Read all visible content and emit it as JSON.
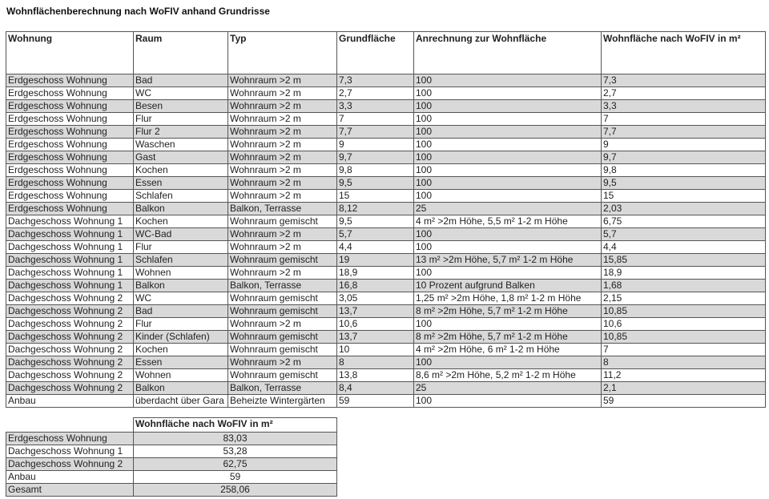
{
  "title": "Wohnflächenberechnung nach WoFIV anhand Grundrisse",
  "table": {
    "header": [
      "Wohnung",
      "Raum",
      "Typ",
      "Grundfläche",
      "Anrechnung zur Wohnfläche",
      "Wohnfläche nach WoFIV in m²"
    ],
    "rows": [
      [
        "Erdgeschoss Wohnung",
        "Bad",
        "Wohnraum >2 m",
        "7,3",
        "100",
        "7,3"
      ],
      [
        "Erdgeschoss Wohnung",
        "WC",
        "Wohnraum >2 m",
        "2,7",
        "100",
        "2,7"
      ],
      [
        "Erdgeschoss Wohnung",
        "Besen",
        "Wohnraum >2 m",
        "3,3",
        "100",
        "3,3"
      ],
      [
        "Erdgeschoss Wohnung",
        "Flur",
        "Wohnraum >2 m",
        "7",
        "100",
        "7"
      ],
      [
        "Erdgeschoss Wohnung",
        "Flur 2",
        "Wohnraum >2 m",
        "7,7",
        "100",
        "7,7"
      ],
      [
        "Erdgeschoss Wohnung",
        "Waschen",
        "Wohnraum >2 m",
        "9",
        "100",
        "9"
      ],
      [
        "Erdgeschoss Wohnung",
        "Gast",
        "Wohnraum >2 m",
        "9,7",
        "100",
        "9,7"
      ],
      [
        "Erdgeschoss Wohnung",
        "Kochen",
        "Wohnraum >2 m",
        "9,8",
        "100",
        "9,8"
      ],
      [
        "Erdgeschoss Wohnung",
        "Essen",
        "Wohnraum >2 m",
        "9,5",
        "100",
        "9,5"
      ],
      [
        "Erdgeschoss Wohnung",
        "Schlafen",
        "Wohnraum >2 m",
        "15",
        "100",
        "15"
      ],
      [
        "Erdgeschoss Wohnung",
        "Balkon",
        "Balkon, Terrasse",
        "8,12",
        "25",
        "2,03"
      ],
      [
        "Dachgeschoss Wohnung 1",
        "Kochen",
        "Wohnraum gemischt",
        "9,5",
        "4 m² >2m Höhe, 5,5 m² 1-2 m Höhe",
        "6,75"
      ],
      [
        "Dachgeschoss Wohnung 1",
        "WC-Bad",
        "Wohnraum >2 m",
        "5,7",
        "100",
        "5,7"
      ],
      [
        "Dachgeschoss Wohnung 1",
        "Flur",
        "Wohnraum >2 m",
        "4,4",
        "100",
        "4,4"
      ],
      [
        "Dachgeschoss Wohnung 1",
        "Schlafen",
        "Wohnraum gemischt",
        "19",
        "13 m² >2m Höhe, 5,7 m² 1-2 m Höhe",
        "15,85"
      ],
      [
        "Dachgeschoss Wohnung 1",
        "Wohnen",
        "Wohnraum >2 m",
        "18,9",
        "100",
        "18,9"
      ],
      [
        "Dachgeschoss Wohnung 1",
        "Balkon",
        "Balkon, Terrasse",
        "16,8",
        "10 Prozent aufgrund Balken",
        "1,68"
      ],
      [
        "Dachgeschoss Wohnung 2",
        "WC",
        "Wohnraum gemischt",
        "3,05",
        "1,25 m² >2m Höhe, 1,8 m² 1-2 m Höhe",
        "2,15"
      ],
      [
        "Dachgeschoss Wohnung 2",
        "Bad",
        "Wohnraum gemischt",
        "13,7",
        "8 m² >2m Höhe, 5,7 m² 1-2 m Höhe",
        "10,85"
      ],
      [
        "Dachgeschoss Wohnung 2",
        "Flur",
        "Wohnraum >2 m",
        "10,6",
        "100",
        "10,6"
      ],
      [
        "Dachgeschoss Wohnung 2",
        "Kinder (Schlafen)",
        "Wohnraum gemischt",
        "13,7",
        "8 m² >2m Höhe, 5,7 m² 1-2 m Höhe",
        "10,85"
      ],
      [
        "Dachgeschoss Wohnung 2",
        "Kochen",
        "Wohnraum gemischt",
        "10",
        "4 m² >2m Höhe, 6 m² 1-2 m Höhe",
        "7"
      ],
      [
        "Dachgeschoss Wohnung 2",
        "Essen",
        "Wohnraum >2 m",
        "8",
        "100",
        "8"
      ],
      [
        "Dachgeschoss Wohnung 2",
        "Wohnen",
        "Wohnraum gemischt",
        "13,8",
        "8,6 m² >2m Höhe, 5,2 m² 1-2 m Höhe",
        "11,2"
      ],
      [
        "Dachgeschoss Wohnung 2",
        "Balkon",
        "Balkon, Terrasse",
        "8,4",
        "25",
        "2,1"
      ],
      [
        "Anbau",
        "überdacht über Gara",
        "Beheizte Wintergärten",
        "59",
        "100",
        "59"
      ]
    ]
  },
  "summary": {
    "header": "Wohnfläche nach WoFIV in m²",
    "rows": [
      [
        "Erdgeschoss Wohnung",
        "83,03"
      ],
      [
        "Dachgeschoss Wohnung 1",
        "53,28"
      ],
      [
        "Dachgeschoss Wohnung 2",
        "62,75"
      ],
      [
        "Anbau",
        "59"
      ],
      [
        "Gesamt",
        "258,06"
      ]
    ]
  }
}
